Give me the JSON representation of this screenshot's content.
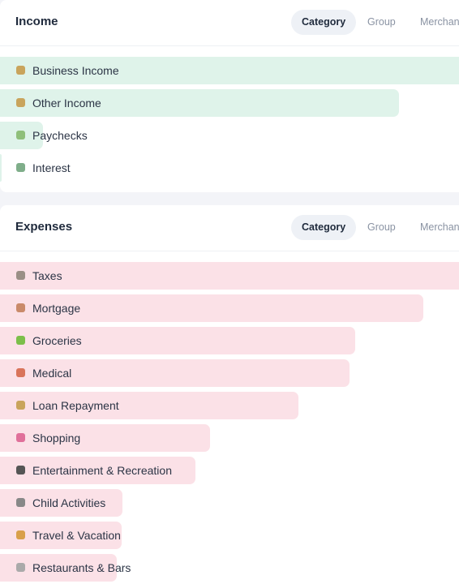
{
  "sections": [
    {
      "title": "Income",
      "tabs": [
        "Category",
        "Group",
        "Merchant"
      ],
      "active_tab": 0,
      "bar_color": "#dff3ea",
      "rows": [
        {
          "label": "Business Income",
          "value": 600
        },
        {
          "label": "Other Income",
          "value": 492
        },
        {
          "label": "Paychecks",
          "value": 53
        },
        {
          "label": "Interest",
          "value": 2
        }
      ]
    },
    {
      "title": "Expenses",
      "tabs": [
        "Category",
        "Group",
        "Merchant"
      ],
      "active_tab": 0,
      "bar_color": "#fbe1e7",
      "rows": [
        {
          "label": "Taxes",
          "value": 600
        },
        {
          "label": "Mortgage",
          "value": 522
        },
        {
          "label": "Groceries",
          "value": 438
        },
        {
          "label": "Medical",
          "value": 431
        },
        {
          "label": "Loan Repayment",
          "value": 368
        },
        {
          "label": "Shopping",
          "value": 259
        },
        {
          "label": "Entertainment & Recreation",
          "value": 241
        },
        {
          "label": "Child Activities",
          "value": 151
        },
        {
          "label": "Travel & Vacation",
          "value": 150
        },
        {
          "label": "Restaurants & Bars",
          "value": 144
        }
      ]
    }
  ]
}
